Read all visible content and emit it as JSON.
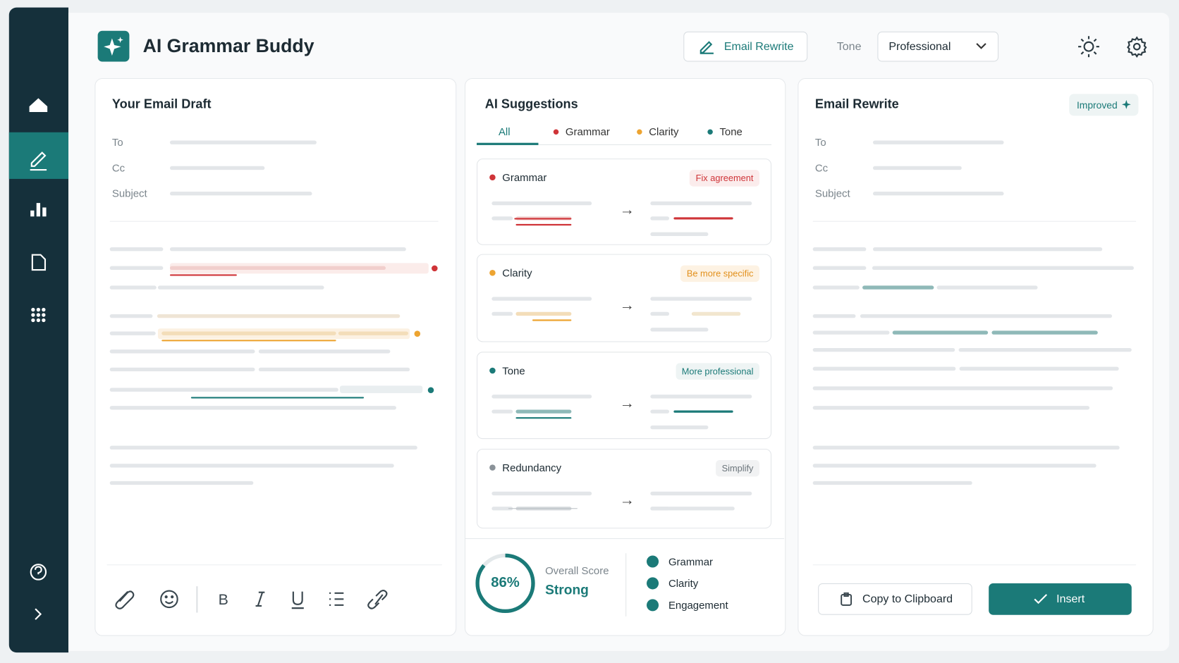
{
  "app": {
    "title": "AI Grammar Buddy"
  },
  "toolbar": {
    "rewrite_button": "Email Rewrite",
    "tone_label": "Tone",
    "tone_value": "Professional"
  },
  "draft": {
    "title": "Your Email Draft",
    "fields": [
      "To",
      "Cc",
      "Subject"
    ]
  },
  "suggestions": {
    "title": "AI Suggestions",
    "tabs": [
      "All",
      "Grammar",
      "Clarity",
      "Tone"
    ],
    "cards": [
      {
        "category": "Grammar",
        "action": "Fix agreement"
      },
      {
        "category": "Clarity",
        "action": "Be more specific"
      },
      {
        "category": "Tone",
        "action": "More professional"
      },
      {
        "category": "Redundancy",
        "action": "Simplify"
      }
    ]
  },
  "score": {
    "label": "Overall Score",
    "value": 86,
    "value_label": "86%",
    "rating": "Strong",
    "checks": [
      "Grammar",
      "Clarity",
      "Engagement"
    ]
  },
  "rewrite": {
    "title": "Email Rewrite",
    "badge": "Improved",
    "fields": [
      "To",
      "Cc",
      "Subject"
    ],
    "copy_button": "Copy to Clipboard",
    "insert_button": "Insert"
  }
}
